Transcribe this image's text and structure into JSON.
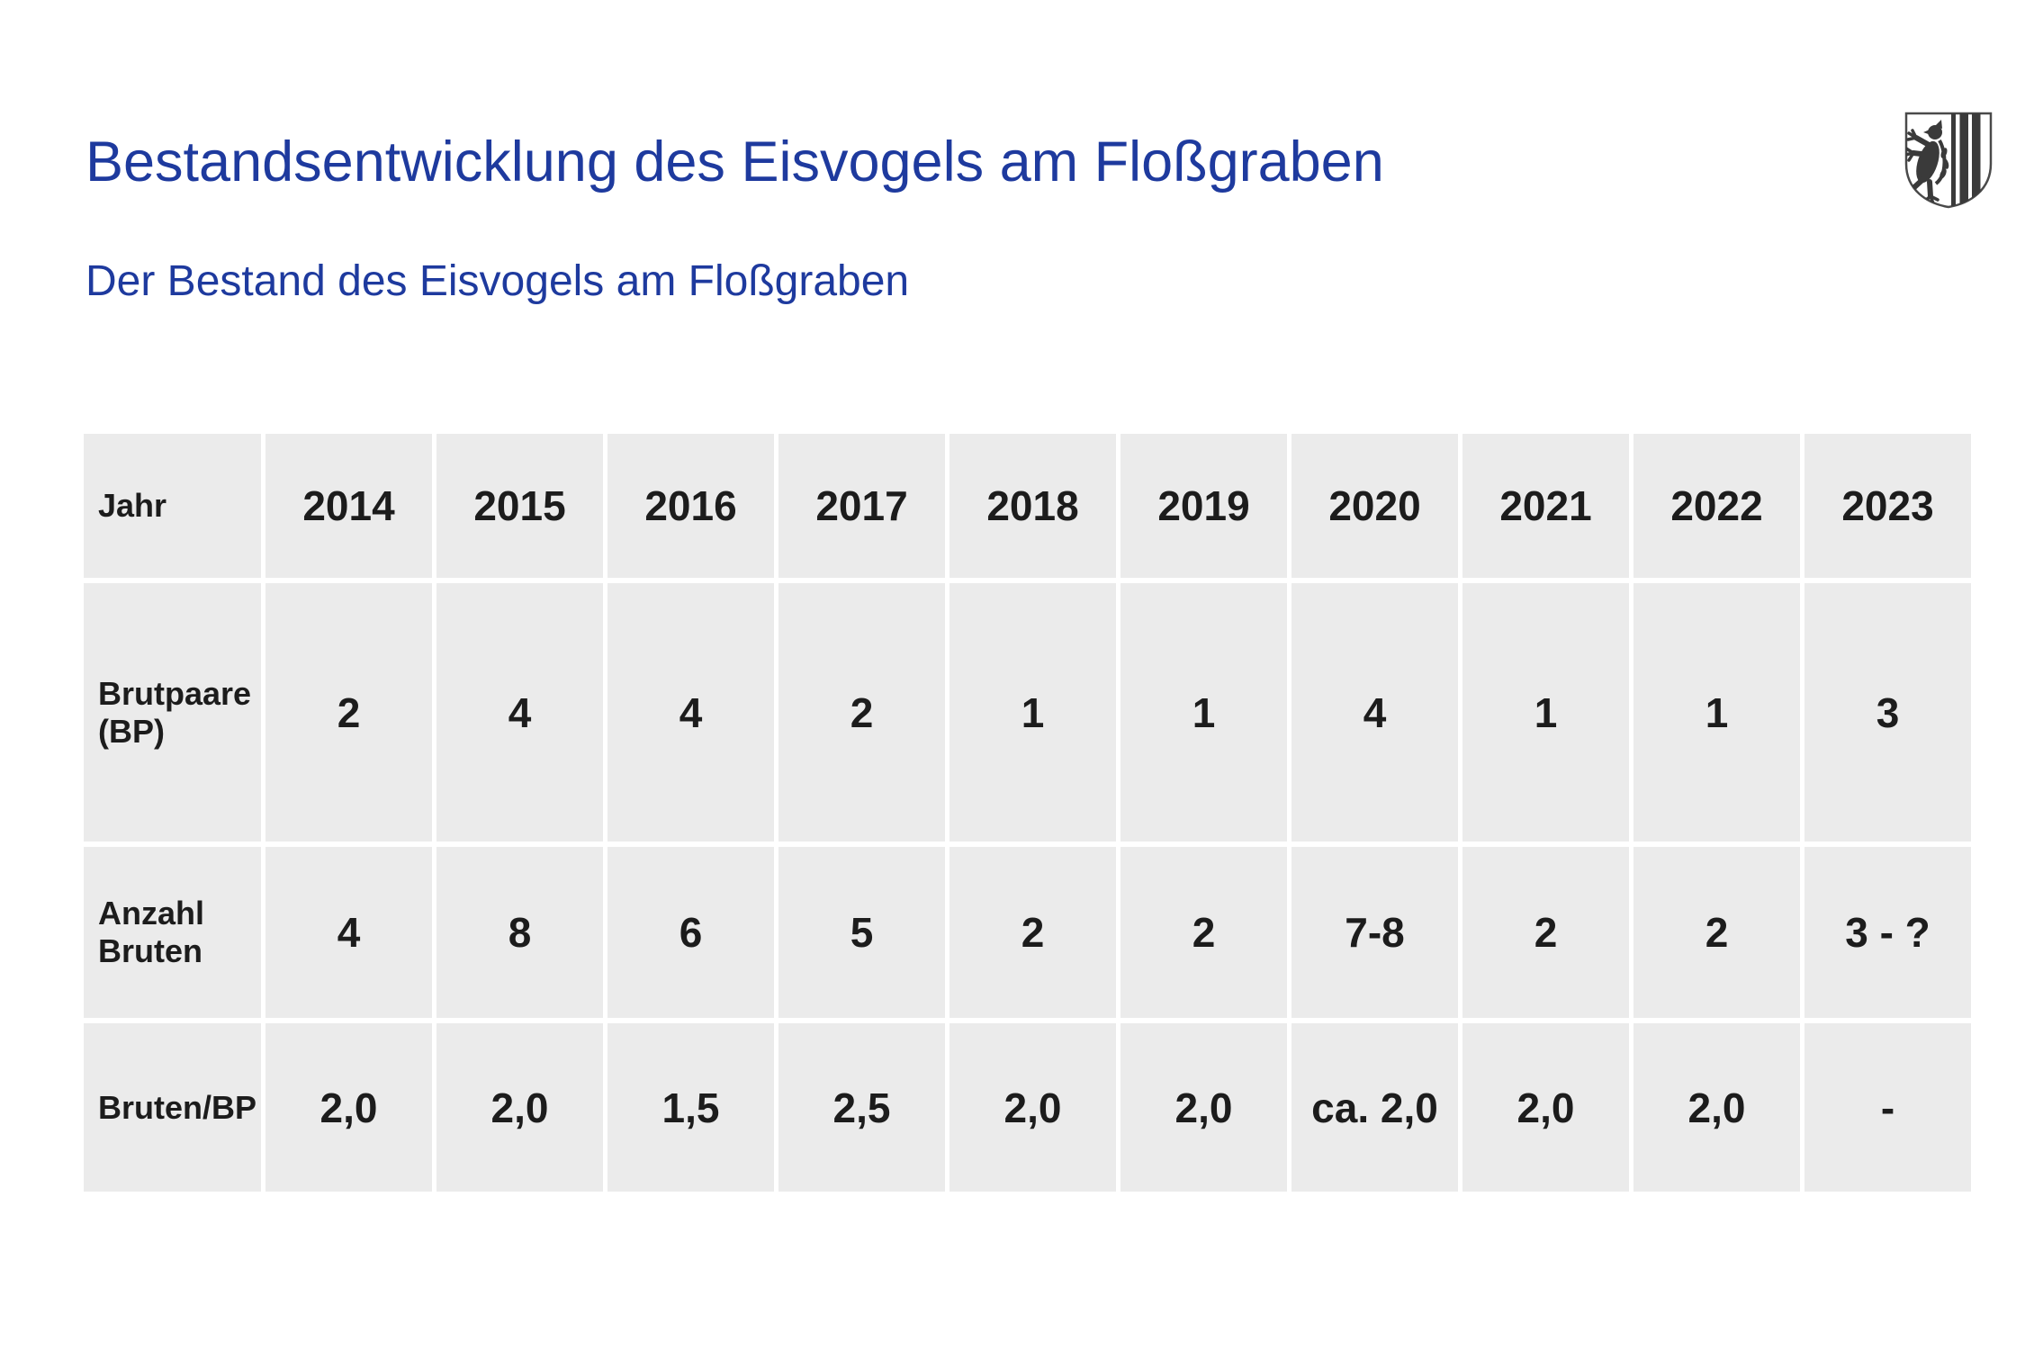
{
  "header": {
    "title": "Bestandsentwicklung des Eisvogels am Floßgraben",
    "subtitle": "Der Bestand des Eisvogels am Floßgraben",
    "logo_icon": "leipzig-coat-of-arms"
  },
  "colors": {
    "heading_blue": "#1e3a9e",
    "cell_background": "#ebebeb",
    "table_text": "#1c1c1c",
    "logo_black": "#3a3a3a",
    "page_background": "#ffffff"
  },
  "table": {
    "corner_label": "Jahr",
    "years": [
      "2014",
      "2015",
      "2016",
      "2017",
      "2018",
      "2019",
      "2020",
      "2021",
      "2022",
      "2023"
    ],
    "rows": [
      {
        "label": "Brutpaare (BP)",
        "values": [
          "2",
          "4",
          "4",
          "2",
          "1",
          "1",
          "4",
          "1",
          "1",
          "3"
        ]
      },
      {
        "label": "Anzahl Bruten",
        "values": [
          "4",
          "8",
          "6",
          "5",
          "2",
          "2",
          "7-8",
          "2",
          "2",
          "3 - ?"
        ]
      },
      {
        "label": "Bruten/BP",
        "values": [
          "2,0",
          "2,0",
          "1,5",
          "2,5",
          "2,0",
          "2,0",
          "ca. 2,0",
          "2,0",
          "2,0",
          "-"
        ]
      }
    ]
  },
  "chart_data": {
    "type": "table",
    "title": "Der Bestand des Eisvogels am Floßgraben",
    "categories": [
      "2014",
      "2015",
      "2016",
      "2017",
      "2018",
      "2019",
      "2020",
      "2021",
      "2022",
      "2023"
    ],
    "series": [
      {
        "name": "Brutpaare (BP)",
        "values": [
          "2",
          "4",
          "4",
          "2",
          "1",
          "1",
          "4",
          "1",
          "1",
          "3"
        ]
      },
      {
        "name": "Anzahl Bruten",
        "values": [
          "4",
          "8",
          "6",
          "5",
          "2",
          "2",
          "7-8",
          "2",
          "2",
          "3 - ?"
        ]
      },
      {
        "name": "Bruten/BP",
        "values": [
          "2,0",
          "2,0",
          "1,5",
          "2,5",
          "2,0",
          "2,0",
          "ca. 2,0",
          "2,0",
          "2,0",
          "-"
        ]
      }
    ]
  }
}
